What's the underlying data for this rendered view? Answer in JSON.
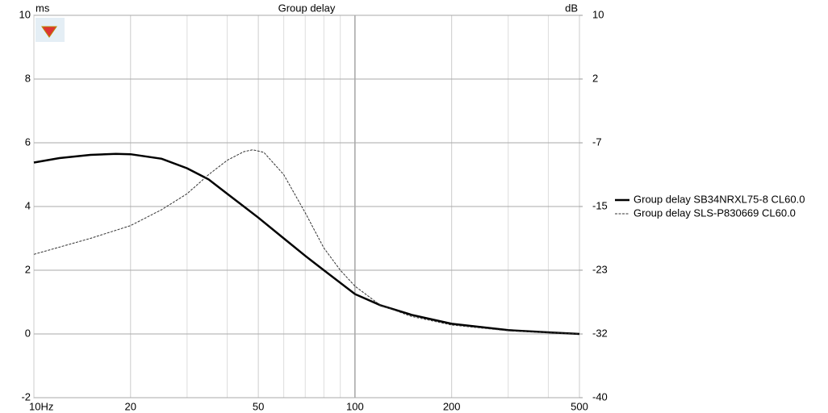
{
  "chart_data": {
    "type": "line",
    "title": "Group delay",
    "y_label": "ms",
    "y2_label": "dB",
    "xscale": "log",
    "xlim": [
      10,
      500
    ],
    "xticks": [
      {
        "value": 10,
        "label": "10Hz"
      },
      20,
      50,
      100,
      200,
      500
    ],
    "xminorticks": [
      30,
      40,
      60,
      70,
      80,
      90,
      300,
      400
    ],
    "ylim": [
      -2,
      10
    ],
    "yticks": [
      -2,
      0,
      2,
      4,
      6,
      8,
      10
    ],
    "y2lim": [
      -40,
      10
    ],
    "y2ticks": [
      -40,
      {
        "value": -31.67,
        "label": "-32"
      },
      {
        "value": -23.33,
        "label": "-23"
      },
      -15,
      {
        "value": -6.67,
        "label": "-7"
      },
      {
        "value": 1.67,
        "label": "2"
      },
      10
    ],
    "grid": true,
    "legend": "right",
    "series": [
      {
        "name": "Group delay SB34NRXL75-8 CL60.0",
        "color": "#000000",
        "style": "solid",
        "x": [
          10,
          12,
          15,
          18,
          20,
          25,
          30,
          35,
          40,
          50,
          60,
          70,
          80,
          100,
          120,
          150,
          200,
          300,
          400,
          500
        ],
        "values": [
          5.38,
          5.52,
          5.62,
          5.65,
          5.64,
          5.5,
          5.2,
          4.85,
          4.4,
          3.65,
          3.0,
          2.45,
          2.0,
          1.25,
          0.9,
          0.6,
          0.32,
          0.12,
          0.05,
          0.0
        ]
      },
      {
        "name": "Group delay SLS-P830669 CL60.0",
        "color": "#333333",
        "style": "dashed",
        "x": [
          10,
          15,
          20,
          25,
          30,
          35,
          40,
          45,
          48,
          52,
          60,
          70,
          80,
          90,
          100,
          120,
          150,
          200,
          300,
          500
        ],
        "values": [
          2.5,
          3.0,
          3.4,
          3.9,
          4.4,
          5.0,
          5.45,
          5.72,
          5.78,
          5.7,
          5.0,
          3.8,
          2.7,
          2.0,
          1.5,
          0.9,
          0.55,
          0.28,
          0.1,
          0.0
        ]
      }
    ]
  }
}
